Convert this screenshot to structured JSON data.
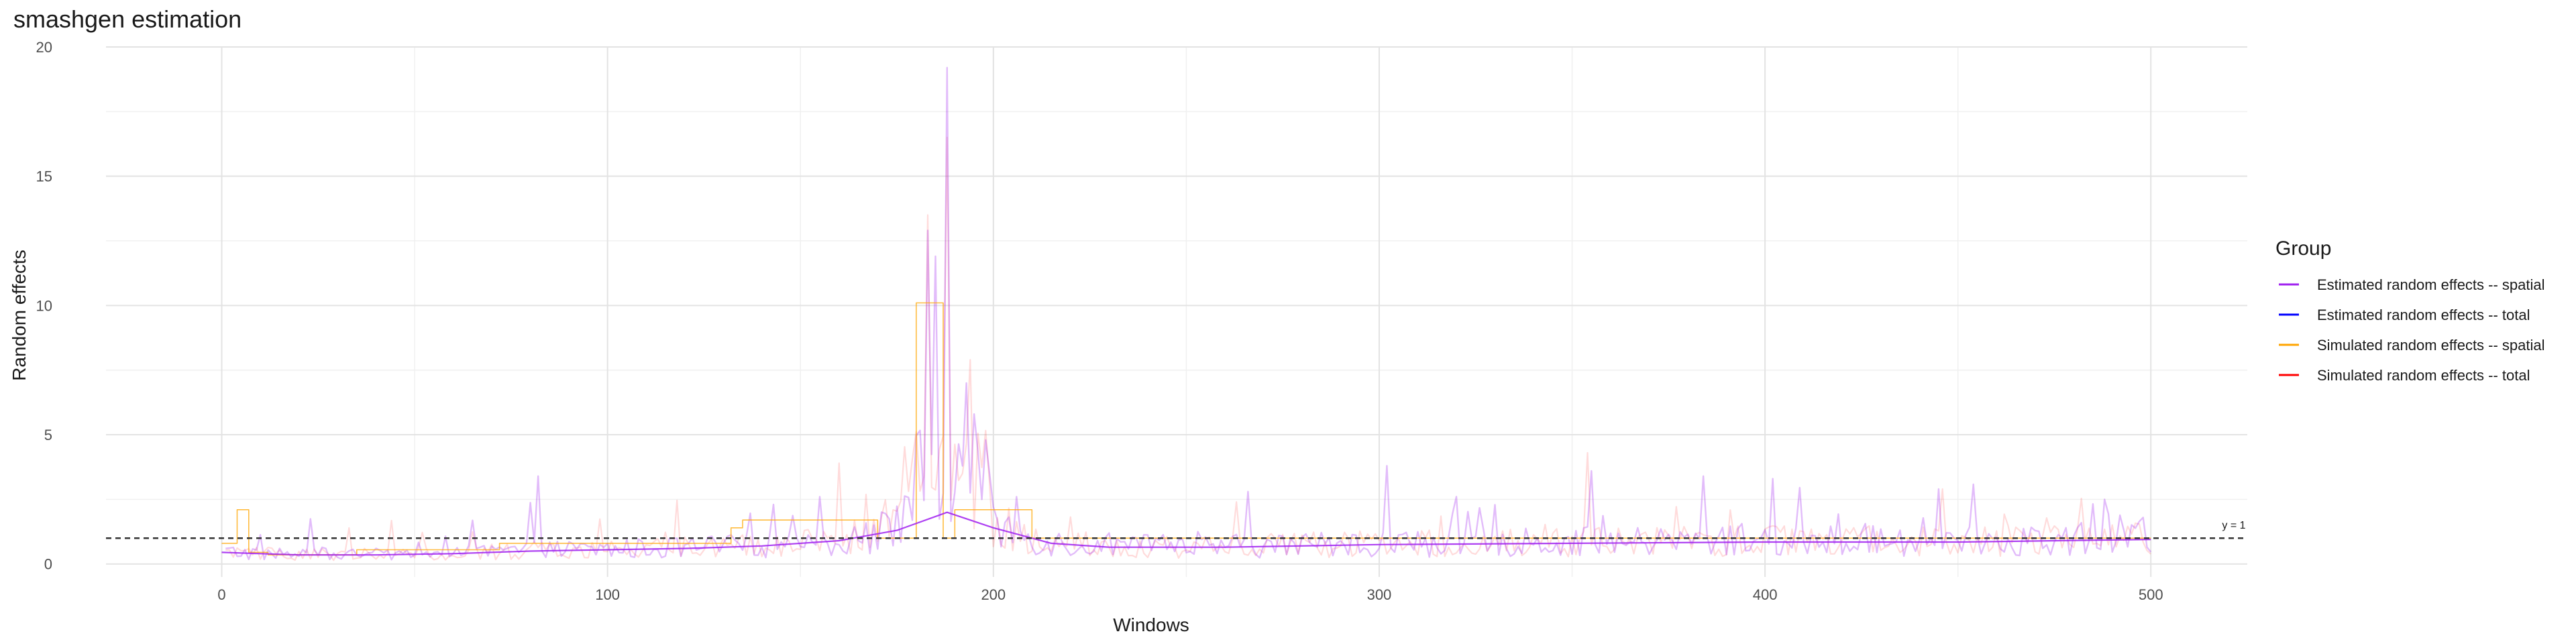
{
  "chart_data": {
    "type": "line",
    "title": "smashgen estimation",
    "xlabel": "Windows",
    "ylabel": "Random effects",
    "xlim": [
      -30,
      525
    ],
    "ylim": [
      -0.5,
      20
    ],
    "x_ticks": [
      0,
      100,
      200,
      300,
      400,
      500
    ],
    "y_ticks": [
      0,
      5,
      10,
      15,
      20
    ],
    "grid": true,
    "legend": {
      "title": "Group",
      "position": "right",
      "entries": [
        {
          "label": "Estimated random effects -- spatial",
          "color": "#a020f0"
        },
        {
          "label": "Estimated random effects -- total",
          "color": "#0000ff"
        },
        {
          "label": "Simulated random effects -- spatial",
          "color": "#ffa500"
        },
        {
          "label": "Simulated random effects -- total",
          "color": "#ff0000"
        }
      ]
    },
    "hline": {
      "y": 1,
      "label": "y = 1"
    },
    "series": [
      {
        "name": "Estimated random effects -- spatial",
        "color": "#a020f0",
        "opacity": 0.85,
        "width": 2.2,
        "x": [
          0,
          20,
          40,
          60,
          80,
          100,
          120,
          140,
          160,
          175,
          188,
          200,
          215,
          230,
          260,
          300,
          350,
          400,
          450,
          500
        ],
        "values": [
          0.45,
          0.35,
          0.35,
          0.4,
          0.5,
          0.55,
          0.6,
          0.7,
          0.9,
          1.3,
          2.0,
          1.4,
          0.8,
          0.65,
          0.65,
          0.75,
          0.8,
          0.85,
          0.85,
          0.95
        ]
      },
      {
        "name": "Simulated random effects -- spatial",
        "color": "#ffa500",
        "opacity": 0.75,
        "width": 1.6,
        "x": [
          0,
          4,
          4,
          7,
          7,
          12,
          12,
          35,
          35,
          72,
          72,
          132,
          132,
          135,
          135,
          170,
          170,
          180,
          180,
          187,
          187,
          190,
          190,
          210,
          210,
          500
        ],
        "values": [
          0.8,
          0.8,
          2.1,
          2.1,
          0.45,
          0.45,
          0.35,
          0.35,
          0.55,
          0.55,
          0.8,
          0.8,
          1.4,
          1.4,
          1.7,
          1.7,
          1.0,
          1.0,
          10.1,
          10.1,
          1.0,
          1.0,
          2.1,
          2.1,
          1.0,
          1.0
        ]
      }
    ],
    "noisy_series": [
      {
        "name": "Estimated random effects -- total",
        "color": "#a020f0",
        "opacity": 0.3,
        "width": 2.4,
        "x_start": 1,
        "x_step": 1,
        "peaks": [
          {
            "x": 82,
            "y": 3.4
          },
          {
            "x": 155,
            "y": 2.6
          },
          {
            "x": 183,
            "y": 12.9
          },
          {
            "x": 185,
            "y": 11.9
          },
          {
            "x": 188,
            "y": 19.2
          },
          {
            "x": 193,
            "y": 7.0
          },
          {
            "x": 195,
            "y": 5.8
          },
          {
            "x": 206,
            "y": 2.6
          },
          {
            "x": 266,
            "y": 2.8
          },
          {
            "x": 302,
            "y": 3.8
          },
          {
            "x": 355,
            "y": 3.6
          },
          {
            "x": 384,
            "y": 3.4
          },
          {
            "x": 402,
            "y": 3.3
          },
          {
            "x": 445,
            "y": 2.9
          },
          {
            "x": 488,
            "y": 2.5
          },
          {
            "x": 498,
            "y": 1.8
          }
        ]
      },
      {
        "name": "Simulated random effects -- total",
        "color": "#ff0000",
        "opacity": 0.14,
        "width": 2.2,
        "x_start": 1,
        "x_step": 1,
        "peaks": [
          {
            "x": 183,
            "y": 13.5
          },
          {
            "x": 188,
            "y": 16.5
          },
          {
            "x": 194,
            "y": 7.9
          },
          {
            "x": 160,
            "y": 3.9
          },
          {
            "x": 354,
            "y": 4.3
          },
          {
            "x": 446,
            "y": 2.9
          }
        ]
      }
    ]
  }
}
